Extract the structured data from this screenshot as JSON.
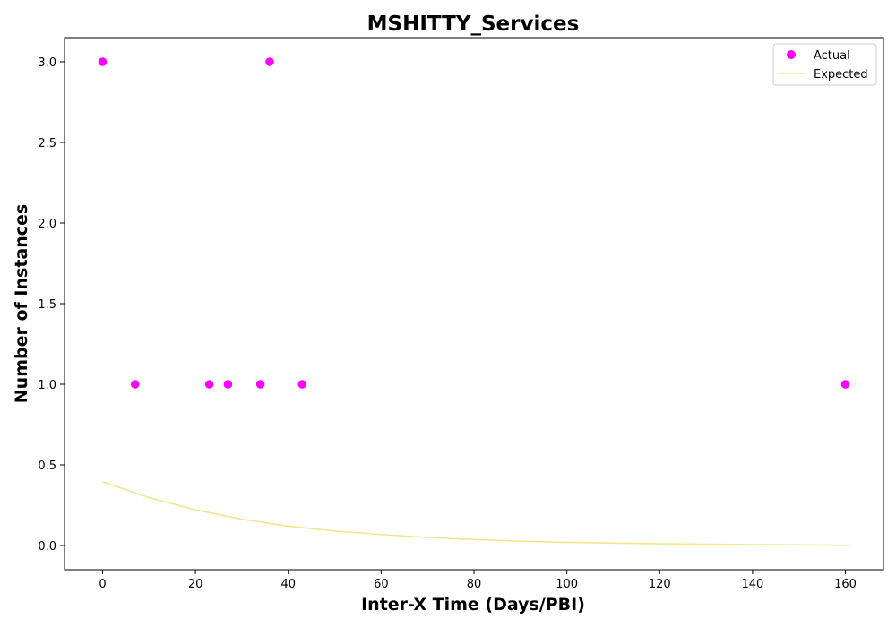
{
  "chart_data": {
    "type": "scatter",
    "title": "MSHITTY_Services",
    "xlabel": "Inter-X Time (Days/PBI)",
    "ylabel": "Number of Instances",
    "xlim": [
      -8.2,
      168.2
    ],
    "ylim": [
      -0.15,
      3.15
    ],
    "xticks": [
      0,
      20,
      40,
      60,
      80,
      100,
      120,
      140,
      160
    ],
    "yticks": [
      0.0,
      0.5,
      1.0,
      1.5,
      2.0,
      2.5,
      3.0
    ],
    "xtick_labels": [
      "0",
      "20",
      "40",
      "60",
      "80",
      "100",
      "120",
      "140",
      "160"
    ],
    "ytick_labels": [
      "0.0",
      "0.5",
      "1.0",
      "1.5",
      "2.0",
      "2.5",
      "3.0"
    ],
    "grid": false,
    "legend_position": "top-right",
    "series": [
      {
        "name": "Actual",
        "kind": "scatter",
        "color": "#ff00ff",
        "points": [
          [
            0,
            3
          ],
          [
            7,
            1
          ],
          [
            23,
            1
          ],
          [
            27,
            1
          ],
          [
            34,
            1
          ],
          [
            36,
            3
          ],
          [
            43,
            1
          ],
          [
            160,
            1
          ]
        ]
      },
      {
        "name": "Expected",
        "kind": "line",
        "color": "#f0e68c",
        "x": [
          0,
          10,
          20,
          30,
          40,
          50,
          60,
          70,
          80,
          90,
          100,
          110,
          120,
          130,
          140,
          150,
          161
        ],
        "y": [
          0.395,
          0.297,
          0.221,
          0.163,
          0.12,
          0.09,
          0.068,
          0.05,
          0.037,
          0.027,
          0.02,
          0.015,
          0.011,
          0.008,
          0.006,
          0.004,
          0.002
        ]
      }
    ]
  }
}
